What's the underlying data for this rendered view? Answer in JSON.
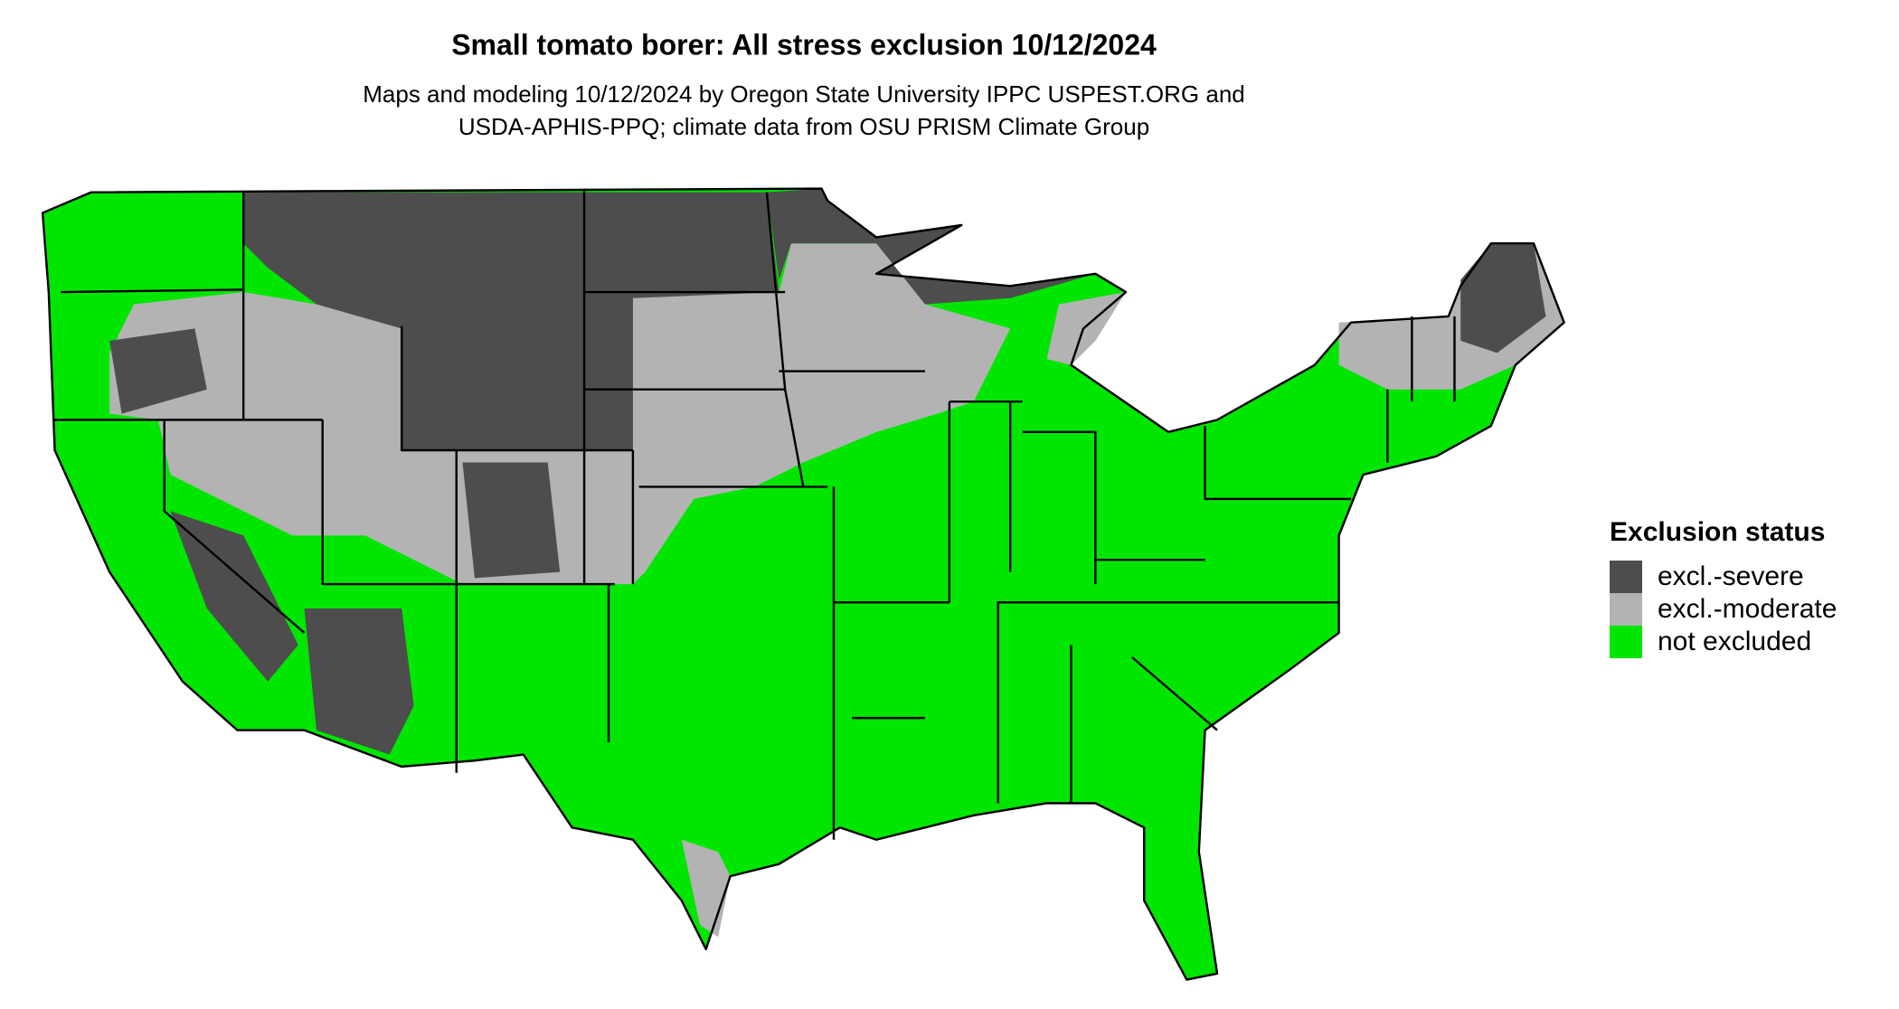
{
  "header": {
    "title": "Small tomato borer: All stress exclusion 10/12/2024",
    "subtitle_lines": [
      "Maps and modeling 10/12/2024 by Oregon State University IPPC USPEST.ORG and",
      "USDA-APHIS-PPQ; climate data from OSU PRISM Climate Group"
    ]
  },
  "legend": {
    "title": "Exclusion status",
    "items": [
      {
        "label": "excl.-severe",
        "color": "#4d4d4d"
      },
      {
        "label": "excl.-moderate",
        "color": "#b3b3b3"
      },
      {
        "label": "not excluded",
        "color": "#00e600"
      }
    ]
  }
}
